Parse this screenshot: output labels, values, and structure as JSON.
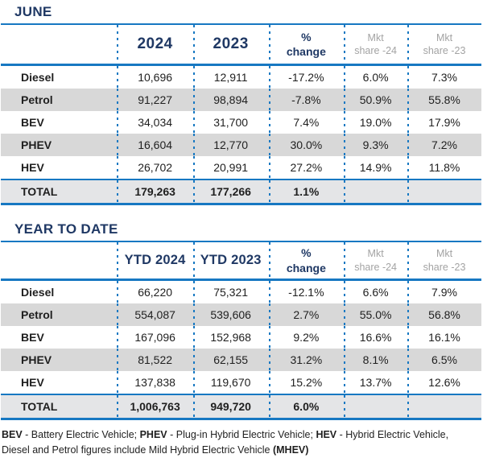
{
  "report": {
    "colors": {
      "navy_heading": "#1f3864",
      "rule_blue": "#1778c2",
      "stripe_gray": "#d8d8d8",
      "total_row_bg": "#e4e5e7",
      "muted_header_gray": "#a3a3a3"
    },
    "june": {
      "title": "JUNE",
      "headers": [
        {
          "l1": "2024",
          "l2": ""
        },
        {
          "l1": "2023",
          "l2": ""
        },
        {
          "l1": "%",
          "l2": "change"
        },
        {
          "l1": "Mkt",
          "l2": "share -24"
        },
        {
          "l1": "Mkt",
          "l2": "share -23"
        }
      ],
      "rows": [
        {
          "label": "Diesel",
          "v1": "10,696",
          "v2": "12,911",
          "change": "-17.2%",
          "share24": "6.0%",
          "share23": "7.3%"
        },
        {
          "label": "Petrol",
          "v1": "91,227",
          "v2": "98,894",
          "change": "-7.8%",
          "share24": "50.9%",
          "share23": "55.8%"
        },
        {
          "label": "BEV",
          "v1": "34,034",
          "v2": "31,700",
          "change": "7.4%",
          "share24": "19.0%",
          "share23": "17.9%"
        },
        {
          "label": "PHEV",
          "v1": "16,604",
          "v2": "12,770",
          "change": "30.0%",
          "share24": "9.3%",
          "share23": "7.2%"
        },
        {
          "label": "HEV",
          "v1": "26,702",
          "v2": "20,991",
          "change": "27.2%",
          "share24": "14.9%",
          "share23": "11.8%"
        }
      ],
      "total": {
        "label": "TOTAL",
        "v1": "179,263",
        "v2": "177,266",
        "change": "1.1%",
        "share24": "",
        "share23": ""
      }
    },
    "ytd": {
      "title": "YEAR TO DATE",
      "headers": [
        {
          "l1": "YTD 2024",
          "l2": ""
        },
        {
          "l1": "YTD 2023",
          "l2": ""
        },
        {
          "l1": "%",
          "l2": "change"
        },
        {
          "l1": "Mkt",
          "l2": "share -24"
        },
        {
          "l1": "Mkt",
          "l2": "share -23"
        }
      ],
      "rows": [
        {
          "label": "Diesel",
          "v1": "66,220",
          "v2": "75,321",
          "change": "-12.1%",
          "share24": "6.6%",
          "share23": "7.9%"
        },
        {
          "label": "Petrol",
          "v1": "554,087",
          "v2": "539,606",
          "change": "2.7%",
          "share24": "55.0%",
          "share23": "56.8%"
        },
        {
          "label": "BEV",
          "v1": "167,096",
          "v2": "152,968",
          "change": "9.2%",
          "share24": "16.6%",
          "share23": "16.1%"
        },
        {
          "label": "PHEV",
          "v1": "81,522",
          "v2": "62,155",
          "change": "31.2%",
          "share24": "8.1%",
          "share23": "6.5%"
        },
        {
          "label": "HEV",
          "v1": "137,838",
          "v2": "119,670",
          "change": "15.2%",
          "share24": "13.7%",
          "share23": "12.6%"
        }
      ],
      "total": {
        "label": "TOTAL",
        "v1": "1,006,763",
        "v2": "949,720",
        "change": "6.0%",
        "share24": "",
        "share23": ""
      }
    },
    "footnote": {
      "line1": [
        {
          "text": "BEV"
        },
        {
          "text": " - Battery Electric Vehicle; "
        },
        {
          "text": "PHEV"
        },
        {
          "text": " - Plug-in Hybrid Electric Vehicle; "
        },
        {
          "text": "HEV"
        },
        {
          "text": " - Hybrid Electric Vehicle,"
        }
      ],
      "line2": [
        {
          "text": "Diesel and Petrol figures include Mild Hybrid Electric Vehicle "
        },
        {
          "text": "(MHEV)"
        }
      ]
    }
  }
}
